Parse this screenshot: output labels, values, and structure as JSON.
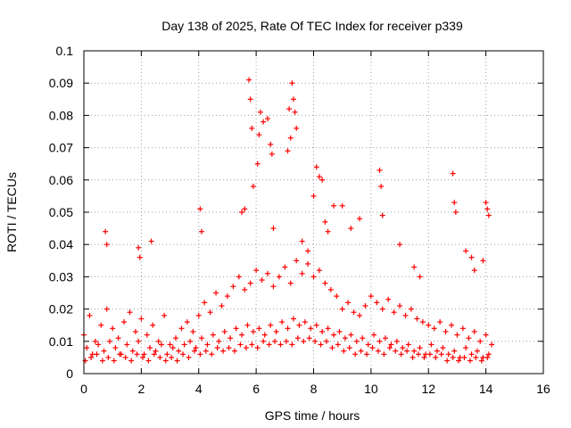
{
  "chart_data": {
    "type": "scatter",
    "title": "Day 138 of 2025, Rate Of TEC Index for receiver p339",
    "xlabel": "GPS time / hours",
    "ylabel": "ROTI / TECUs",
    "xlim": [
      0,
      16
    ],
    "ylim": [
      0,
      0.1
    ],
    "grid": true,
    "legend": "none",
    "marker": "+",
    "series_color": "#ff0000",
    "x_ticks": [
      "0",
      "2",
      "4",
      "6",
      "8",
      "10",
      "12",
      "14",
      "16"
    ],
    "x_tick_values": [
      0,
      2,
      4,
      6,
      8,
      10,
      12,
      14,
      16
    ],
    "y_ticks": [
      "0",
      "0.01",
      "0.02",
      "0.03",
      "0.04",
      "0.05",
      "0.06",
      "0.07",
      "0.08",
      "0.09",
      "0.1"
    ],
    "y_tick_values": [
      0,
      0.01,
      0.02,
      0.03,
      0.04,
      0.05,
      0.06,
      0.07,
      0.08,
      0.09,
      0.1
    ],
    "series": [
      {
        "name": "ROTI",
        "x": [
          0.0,
          0.2,
          0.4,
          0.6,
          0.8,
          1.0,
          1.2,
          1.4,
          1.6,
          1.8,
          2.0,
          2.2,
          2.4,
          2.6,
          2.8,
          3.0,
          3.2,
          3.4,
          3.6,
          3.8,
          4.0,
          4.2,
          4.4,
          4.6,
          4.8,
          5.0,
          5.2,
          5.4,
          5.6,
          5.8,
          6.0,
          6.2,
          6.4,
          6.6,
          6.8,
          7.0,
          7.2,
          7.4,
          7.6,
          7.8,
          8.0,
          8.2,
          8.4,
          8.6,
          8.8,
          9.0,
          9.2,
          9.4,
          9.6,
          9.8,
          10.0,
          10.2,
          10.4,
          10.6,
          10.8,
          11.0,
          11.2,
          11.4,
          11.6,
          11.8,
          12.0,
          12.2,
          12.4,
          12.6,
          12.8,
          13.0,
          13.2,
          13.4,
          13.6,
          13.8,
          14.0,
          14.2,
          0.1,
          0.3,
          0.5,
          0.7,
          0.9,
          1.1,
          1.3,
          1.5,
          1.7,
          1.9,
          2.1,
          2.3,
          2.5,
          2.7,
          2.9,
          3.1,
          3.3,
          3.5,
          3.7,
          3.9,
          4.1,
          4.3,
          4.5,
          4.7,
          4.9,
          5.1,
          5.3,
          5.5,
          5.7,
          5.9,
          6.1,
          6.3,
          6.5,
          6.7,
          6.9,
          7.1,
          7.3,
          7.5,
          7.7,
          7.9,
          8.1,
          8.3,
          8.5,
          8.7,
          8.9,
          9.1,
          9.3,
          9.5,
          9.7,
          9.9,
          10.1,
          10.3,
          10.5,
          10.7,
          10.9,
          11.1,
          11.3,
          11.5,
          11.7,
          11.9,
          12.1,
          12.3,
          12.5,
          12.7,
          12.9,
          13.1,
          13.3,
          13.5,
          13.7,
          13.9,
          14.1,
          0.05,
          0.25,
          0.45,
          0.65,
          0.85,
          1.05,
          1.25,
          1.45,
          1.65,
          1.85,
          2.05,
          2.25,
          2.45,
          2.65,
          2.85,
          3.05,
          3.25,
          3.45,
          3.65,
          3.85,
          4.05,
          4.25,
          4.45,
          4.65,
          4.85,
          5.05,
          5.25,
          5.45,
          5.65,
          5.85,
          6.05,
          6.25,
          6.45,
          6.65,
          6.85,
          7.05,
          7.25,
          7.45,
          7.65,
          7.85,
          8.05,
          8.25,
          8.45,
          8.65,
          8.85,
          9.05,
          9.25,
          9.45,
          9.65,
          9.85,
          10.05,
          10.25,
          10.45,
          10.65,
          10.85,
          11.05,
          11.25,
          11.45,
          11.65,
          11.85,
          12.05,
          12.25,
          12.45,
          12.65,
          12.85,
          13.05,
          13.25,
          13.45,
          13.65,
          13.85,
          14.05,
          0.75,
          0.8,
          1.9,
          1.95,
          2.35,
          4.05,
          4.1,
          5.5,
          5.6,
          5.75,
          5.8,
          5.85,
          6.05,
          6.1,
          6.15,
          6.25,
          6.4,
          6.5,
          6.55,
          7.15,
          7.25,
          7.3,
          7.35,
          7.4,
          7.1,
          7.2,
          8.1,
          8.2,
          8.3,
          8.7,
          9.6,
          10.3,
          10.35,
          10.4,
          12.85,
          12.9,
          12.95,
          14.0,
          14.05,
          14.1,
          5.9,
          6.6,
          7.6,
          7.8,
          8.0,
          8.4,
          8.5,
          9.0,
          9.3,
          11.0,
          11.5,
          11.7,
          13.3,
          13.5,
          13.6,
          13.9
        ],
        "y": [
          0.012,
          0.018,
          0.01,
          0.015,
          0.02,
          0.014,
          0.011,
          0.016,
          0.019,
          0.013,
          0.017,
          0.012,
          0.015,
          0.01,
          0.018,
          0.009,
          0.011,
          0.014,
          0.016,
          0.013,
          0.018,
          0.022,
          0.019,
          0.025,
          0.021,
          0.024,
          0.027,
          0.03,
          0.026,
          0.028,
          0.032,
          0.029,
          0.031,
          0.027,
          0.03,
          0.033,
          0.028,
          0.035,
          0.031,
          0.034,
          0.03,
          0.032,
          0.028,
          0.026,
          0.024,
          0.02,
          0.022,
          0.019,
          0.018,
          0.021,
          0.024,
          0.022,
          0.02,
          0.023,
          0.019,
          0.021,
          0.018,
          0.02,
          0.017,
          0.016,
          0.015,
          0.014,
          0.016,
          0.013,
          0.015,
          0.012,
          0.014,
          0.011,
          0.013,
          0.01,
          0.012,
          0.009,
          0.008,
          0.006,
          0.009,
          0.007,
          0.01,
          0.008,
          0.006,
          0.009,
          0.007,
          0.01,
          0.006,
          0.008,
          0.007,
          0.009,
          0.006,
          0.008,
          0.007,
          0.009,
          0.01,
          0.008,
          0.011,
          0.009,
          0.012,
          0.01,
          0.013,
          0.011,
          0.014,
          0.012,
          0.015,
          0.013,
          0.014,
          0.012,
          0.015,
          0.013,
          0.016,
          0.014,
          0.017,
          0.015,
          0.016,
          0.014,
          0.015,
          0.013,
          0.014,
          0.012,
          0.013,
          0.011,
          0.012,
          0.01,
          0.011,
          0.009,
          0.012,
          0.01,
          0.011,
          0.009,
          0.01,
          0.008,
          0.009,
          0.007,
          0.008,
          0.006,
          0.009,
          0.007,
          0.008,
          0.006,
          0.007,
          0.005,
          0.008,
          0.006,
          0.007,
          0.005,
          0.006,
          0.004,
          0.005,
          0.006,
          0.004,
          0.005,
          0.004,
          0.006,
          0.005,
          0.004,
          0.006,
          0.005,
          0.004,
          0.006,
          0.005,
          0.004,
          0.005,
          0.004,
          0.006,
          0.005,
          0.007,
          0.006,
          0.007,
          0.006,
          0.008,
          0.007,
          0.008,
          0.007,
          0.009,
          0.008,
          0.009,
          0.008,
          0.01,
          0.009,
          0.01,
          0.009,
          0.01,
          0.009,
          0.011,
          0.01,
          0.011,
          0.01,
          0.009,
          0.01,
          0.008,
          0.009,
          0.007,
          0.008,
          0.006,
          0.007,
          0.006,
          0.008,
          0.007,
          0.006,
          0.008,
          0.007,
          0.006,
          0.007,
          0.005,
          0.006,
          0.005,
          0.006,
          0.005,
          0.006,
          0.004,
          0.005,
          0.004,
          0.005,
          0.004,
          0.005,
          0.004,
          0.005,
          0.044,
          0.04,
          0.039,
          0.036,
          0.041,
          0.051,
          0.044,
          0.05,
          0.051,
          0.091,
          0.085,
          0.076,
          0.065,
          0.074,
          0.081,
          0.078,
          0.079,
          0.071,
          0.068,
          0.082,
          0.09,
          0.085,
          0.081,
          0.076,
          0.069,
          0.073,
          0.064,
          0.061,
          0.06,
          0.052,
          0.048,
          0.063,
          0.058,
          0.049,
          0.062,
          0.053,
          0.05,
          0.053,
          0.051,
          0.049,
          0.058,
          0.045,
          0.041,
          0.038,
          0.055,
          0.047,
          0.044,
          0.052,
          0.045,
          0.04,
          0.033,
          0.03,
          0.038,
          0.036,
          0.032,
          0.035
        ]
      }
    ]
  }
}
